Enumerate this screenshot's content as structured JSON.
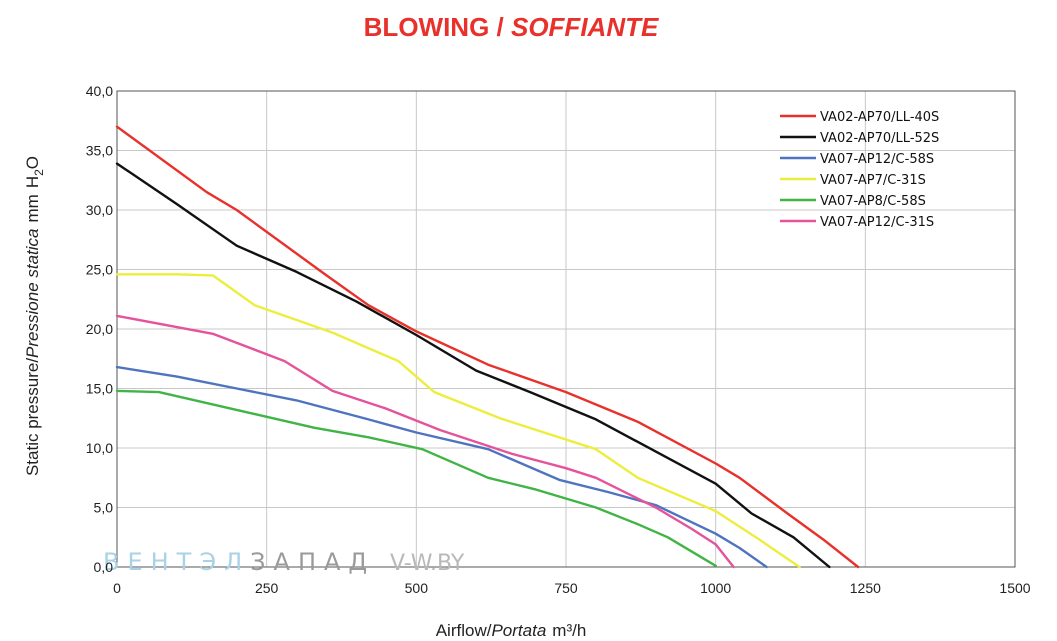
{
  "chart_data": {
    "type": "line",
    "title": "BLOWING",
    "title_separator": " / ",
    "title_italic": "SOFFIANTE",
    "xlabel": "Airflow",
    "xlabel_italic": "Portata",
    "xlabel_unit": "m³/h",
    "ylabel": "Static pressure/",
    "ylabel_italic": "Pressione statica",
    "ylabel_unit_prefix": "mm",
    "ylabel_unit": "H",
    "ylabel_unit_sub": "2",
    "ylabel_unit_suffix": "O",
    "xlim": [
      0,
      1500
    ],
    "ylim": [
      0,
      40
    ],
    "x_ticks": [
      "0",
      "250",
      "500",
      "750",
      "1000",
      "1250",
      "1500"
    ],
    "y_ticks": [
      "0,0",
      "5,0",
      "10,0",
      "15,0",
      "20,0",
      "25,0",
      "30,0",
      "35,0",
      "40,0"
    ],
    "grid": true,
    "legend_position": "top-right",
    "series": [
      {
        "name": "VA02-AP70/LL-40S",
        "color": "#e8312b",
        "points": [
          [
            0,
            37.0
          ],
          [
            150,
            31.5
          ],
          [
            200,
            30.0
          ],
          [
            350,
            24.5
          ],
          [
            420,
            22.0
          ],
          [
            500,
            19.8
          ],
          [
            620,
            17.0
          ],
          [
            750,
            14.7
          ],
          [
            870,
            12.2
          ],
          [
            1000,
            8.7
          ],
          [
            1040,
            7.5
          ],
          [
            1120,
            4.5
          ],
          [
            1180,
            2.3
          ],
          [
            1238,
            0.0
          ]
        ]
      },
      {
        "name": "VA02-AP70/LL-52S",
        "color": "#111111",
        "points": [
          [
            0,
            33.9
          ],
          [
            100,
            30.5
          ],
          [
            200,
            27.0
          ],
          [
            300,
            24.8
          ],
          [
            400,
            22.3
          ],
          [
            500,
            19.5
          ],
          [
            600,
            16.5
          ],
          [
            690,
            14.7
          ],
          [
            800,
            12.4
          ],
          [
            900,
            9.7
          ],
          [
            1000,
            7.0
          ],
          [
            1060,
            4.5
          ],
          [
            1130,
            2.5
          ],
          [
            1190,
            0.0
          ]
        ]
      },
      {
        "name": "VA07-AP12/C-58S",
        "color": "#4f74bf",
        "points": [
          [
            0,
            16.8
          ],
          [
            100,
            16.0
          ],
          [
            200,
            15.0
          ],
          [
            300,
            14.0
          ],
          [
            420,
            12.4
          ],
          [
            500,
            11.3
          ],
          [
            620,
            9.9
          ],
          [
            740,
            7.3
          ],
          [
            820,
            6.3
          ],
          [
            900,
            5.2
          ],
          [
            1000,
            2.8
          ],
          [
            1040,
            1.6
          ],
          [
            1085,
            0.0
          ]
        ]
      },
      {
        "name": "VA07-AP7/C-31S",
        "color": "#eded3e",
        "points": [
          [
            0,
            24.6
          ],
          [
            100,
            24.6
          ],
          [
            160,
            24.5
          ],
          [
            230,
            22.0
          ],
          [
            360,
            19.7
          ],
          [
            470,
            17.3
          ],
          [
            530,
            14.7
          ],
          [
            640,
            12.5
          ],
          [
            800,
            9.9
          ],
          [
            870,
            7.5
          ],
          [
            1000,
            4.7
          ],
          [
            1070,
            2.4
          ],
          [
            1140,
            0.0
          ]
        ]
      },
      {
        "name": "VA07-AP8/C-58S",
        "color": "#41b446",
        "points": [
          [
            0,
            14.8
          ],
          [
            70,
            14.7
          ],
          [
            200,
            13.2
          ],
          [
            330,
            11.7
          ],
          [
            420,
            10.9
          ],
          [
            510,
            9.9
          ],
          [
            620,
            7.5
          ],
          [
            700,
            6.5
          ],
          [
            800,
            5.0
          ],
          [
            870,
            3.6
          ],
          [
            920,
            2.5
          ],
          [
            1000,
            0.1
          ]
        ]
      },
      {
        "name": "VA07-AP12/C-31S",
        "color": "#e5539a",
        "points": [
          [
            0,
            21.1
          ],
          [
            160,
            19.6
          ],
          [
            280,
            17.3
          ],
          [
            360,
            14.8
          ],
          [
            450,
            13.3
          ],
          [
            540,
            11.5
          ],
          [
            660,
            9.5
          ],
          [
            750,
            8.3
          ],
          [
            800,
            7.5
          ],
          [
            900,
            5.0
          ],
          [
            960,
            3.2
          ],
          [
            1000,
            1.9
          ],
          [
            1030,
            0.0
          ]
        ]
      }
    ]
  },
  "watermark": {
    "brand_light": "ВЕНТЭЛ",
    "brand_dark": "ЗАПАД",
    "site": "V-W.BY"
  }
}
